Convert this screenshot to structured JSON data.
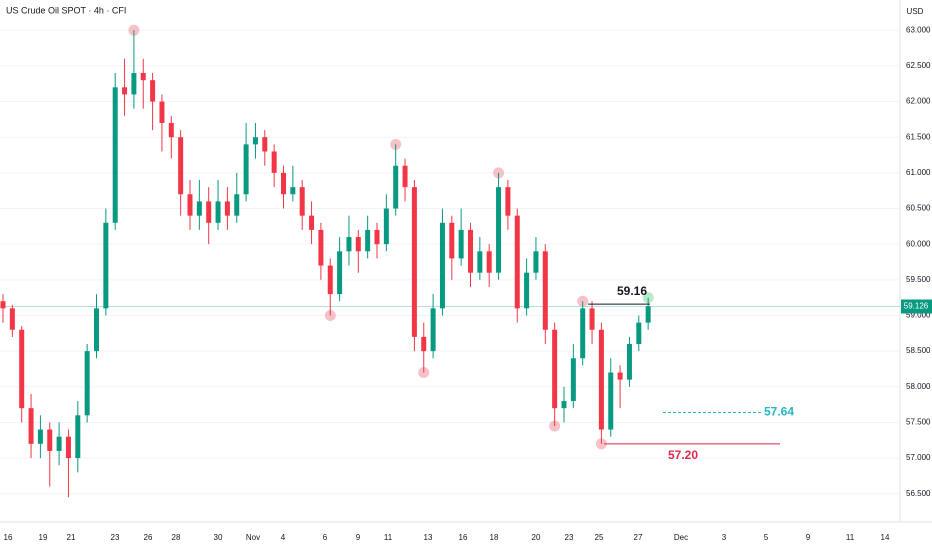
{
  "chart_data": {
    "type": "candlestick",
    "title": "US Crude Oil SPOT · 4h · CFI",
    "currency": "USD",
    "ylim": [
      56.3,
      63.2
    ],
    "yticks": [
      {
        "value": 56.5,
        "label": "56.500"
      },
      {
        "value": 57,
        "label": "57.000"
      },
      {
        "value": 57.5,
        "label": "57.500"
      },
      {
        "value": 58,
        "label": "58.000"
      },
      {
        "value": 58.5,
        "label": "58.500"
      },
      {
        "value": 59,
        "label": "59.000"
      },
      {
        "value": 59.5,
        "label": "59.500"
      },
      {
        "value": 60,
        "label": "60.000"
      },
      {
        "value": 60.5,
        "label": "60.500"
      },
      {
        "value": 61,
        "label": "61.000"
      },
      {
        "value": 61.5,
        "label": "61.500"
      },
      {
        "value": 62,
        "label": "62.000"
      },
      {
        "value": 62.5,
        "label": "62.500"
      },
      {
        "value": 63,
        "label": "63.000"
      }
    ],
    "xticks": [
      "16",
      "19",
      "21",
      "23",
      "26",
      "28",
      "30",
      "Nov",
      "4",
      "6",
      "9",
      "11",
      "13",
      "16",
      "18",
      "20",
      "23",
      "25",
      "27",
      "Dec",
      "3",
      "5",
      "9",
      "11",
      "14"
    ],
    "grid": true,
    "up_color": "#089981",
    "down_color": "#f23645",
    "ohlc": [
      [
        59.2,
        59.3,
        58.9,
        59.1
      ],
      [
        59.1,
        59.15,
        58.7,
        58.8
      ],
      [
        58.8,
        58.85,
        57.5,
        57.7
      ],
      [
        57.7,
        57.9,
        57.0,
        57.2
      ],
      [
        57.2,
        57.6,
        57.0,
        57.4
      ],
      [
        57.4,
        57.5,
        56.6,
        57.1
      ],
      [
        57.1,
        57.5,
        56.9,
        57.3
      ],
      [
        57.3,
        57.4,
        56.45,
        57.0
      ],
      [
        57.0,
        57.8,
        56.8,
        57.6
      ],
      [
        57.6,
        58.6,
        57.5,
        58.5
      ],
      [
        58.5,
        59.3,
        58.4,
        59.1
      ],
      [
        59.1,
        60.5,
        59.0,
        60.3
      ],
      [
        60.3,
        62.4,
        60.2,
        62.2
      ],
      [
        62.2,
        62.6,
        61.8,
        62.1
      ],
      [
        62.1,
        63.0,
        61.9,
        62.4
      ],
      [
        62.4,
        62.6,
        61.9,
        62.3
      ],
      [
        62.3,
        62.4,
        61.6,
        62.0
      ],
      [
        62.0,
        62.1,
        61.3,
        61.7
      ],
      [
        61.7,
        61.8,
        61.2,
        61.5
      ],
      [
        61.5,
        61.6,
        60.4,
        60.7
      ],
      [
        60.7,
        60.9,
        60.2,
        60.4
      ],
      [
        60.4,
        60.9,
        60.2,
        60.6
      ],
      [
        60.6,
        60.8,
        60.0,
        60.3
      ],
      [
        60.3,
        60.9,
        60.2,
        60.6
      ],
      [
        60.6,
        60.8,
        60.2,
        60.4
      ],
      [
        60.4,
        61.0,
        60.3,
        60.7
      ],
      [
        60.7,
        61.7,
        60.6,
        61.4
      ],
      [
        61.4,
        61.7,
        61.2,
        61.5
      ],
      [
        61.5,
        61.6,
        61.1,
        61.3
      ],
      [
        61.3,
        61.4,
        60.8,
        61.0
      ],
      [
        61.0,
        61.1,
        60.5,
        60.7
      ],
      [
        60.7,
        61.1,
        60.6,
        60.8
      ],
      [
        60.8,
        60.9,
        60.2,
        60.4
      ],
      [
        60.4,
        60.6,
        60.0,
        60.2
      ],
      [
        60.2,
        60.3,
        59.5,
        59.7
      ],
      [
        59.7,
        59.8,
        59.0,
        59.3
      ],
      [
        59.3,
        60.1,
        59.2,
        59.9
      ],
      [
        59.9,
        60.4,
        59.7,
        60.1
      ],
      [
        60.1,
        60.2,
        59.6,
        59.9
      ],
      [
        59.9,
        60.4,
        59.8,
        60.2
      ],
      [
        60.2,
        60.3,
        59.8,
        60.0
      ],
      [
        60.0,
        60.7,
        59.9,
        60.5
      ],
      [
        60.5,
        61.4,
        60.4,
        61.1
      ],
      [
        61.1,
        61.2,
        60.6,
        60.8
      ],
      [
        60.8,
        60.9,
        58.5,
        58.7
      ],
      [
        58.7,
        58.9,
        58.2,
        58.5
      ],
      [
        58.5,
        59.3,
        58.4,
        59.1
      ],
      [
        59.1,
        60.5,
        59.0,
        60.3
      ],
      [
        60.3,
        60.4,
        59.5,
        59.8
      ],
      [
        59.8,
        60.5,
        59.7,
        60.2
      ],
      [
        60.2,
        60.3,
        59.4,
        59.6
      ],
      [
        59.6,
        60.1,
        59.5,
        59.9
      ],
      [
        59.9,
        60.0,
        59.4,
        59.6
      ],
      [
        59.6,
        61.0,
        59.5,
        60.8
      ],
      [
        60.8,
        60.9,
        60.2,
        60.4
      ],
      [
        60.4,
        60.5,
        58.9,
        59.1
      ],
      [
        59.1,
        59.8,
        59.0,
        59.6
      ],
      [
        59.6,
        60.1,
        59.5,
        59.9
      ],
      [
        59.9,
        60.0,
        58.6,
        58.8
      ],
      [
        58.8,
        58.9,
        57.45,
        57.7
      ],
      [
        57.7,
        58.0,
        57.5,
        57.8
      ],
      [
        57.8,
        58.6,
        57.7,
        58.4
      ],
      [
        58.4,
        59.2,
        58.3,
        59.1
      ],
      [
        59.1,
        59.2,
        58.6,
        58.8
      ],
      [
        58.8,
        58.9,
        57.2,
        57.4
      ],
      [
        57.4,
        58.4,
        57.3,
        58.2
      ],
      [
        58.2,
        58.3,
        57.7,
        58.1
      ],
      [
        58.1,
        58.7,
        58.0,
        58.6
      ],
      [
        58.6,
        59.0,
        58.5,
        58.9
      ],
      [
        58.9,
        59.25,
        58.8,
        59.13
      ]
    ],
    "last_price": 59.126,
    "levels": [
      {
        "value": 59.16,
        "label": "59.16",
        "color": "#131722"
      },
      {
        "value": 57.64,
        "label": "57.64",
        "color": "#22b8c4"
      },
      {
        "value": 57.2,
        "label": "57.20",
        "color": "#e0284a"
      }
    ]
  }
}
